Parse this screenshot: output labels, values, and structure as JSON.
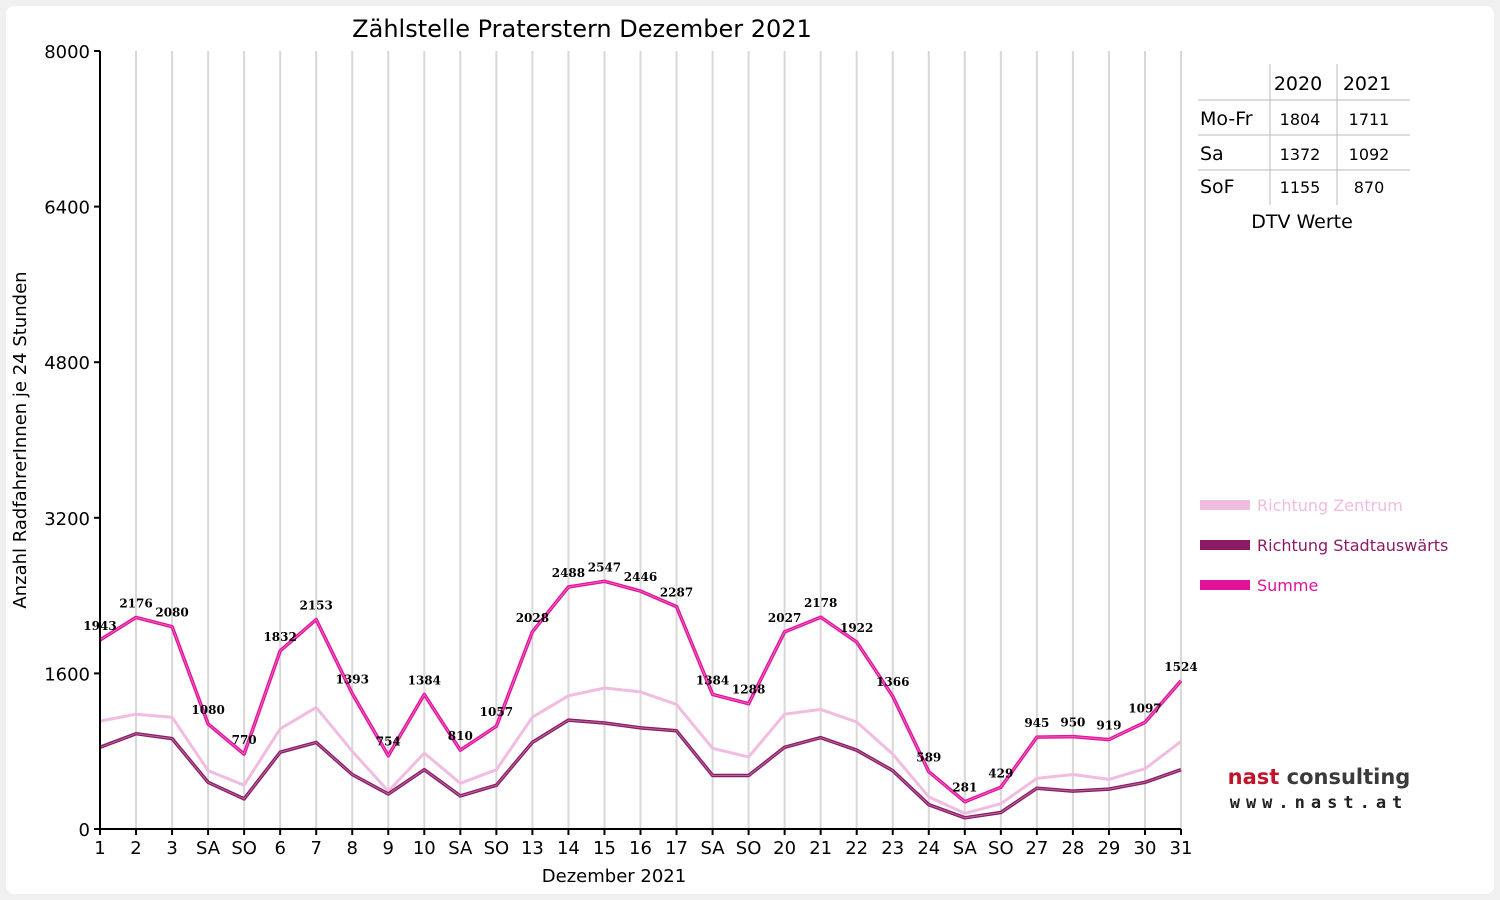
{
  "chart_data": {
    "type": "line",
    "title": "Zählstelle Praterstern Dezember 2021",
    "xlabel": "Dezember 2021",
    "ylabel": "Anzahl RadfahrerInnen je 24 Stunden",
    "ylim": [
      0,
      8000
    ],
    "yticks": [
      0,
      1600,
      3200,
      4800,
      6400,
      8000
    ],
    "grid": "vertical",
    "categories": [
      "1",
      "2",
      "3",
      "SA",
      "SO",
      "6",
      "7",
      "8",
      "9",
      "10",
      "SA",
      "SO",
      "13",
      "14",
      "15",
      "16",
      "17",
      "SA",
      "SO",
      "20",
      "21",
      "22",
      "23",
      "24",
      "SA",
      "SO",
      "27",
      "28",
      "29",
      "30",
      "31"
    ],
    "holiday_categories": [
      4,
      7,
      11,
      18,
      25
    ],
    "series": [
      {
        "name": "Richtung Zentrum",
        "color": "#f0bde0",
        "values": [
          1110,
          1180,
          1150,
          600,
          450,
          1030,
          1250,
          800,
          390,
          780,
          470,
          610,
          1150,
          1370,
          1450,
          1410,
          1280,
          830,
          740,
          1180,
          1230,
          1100,
          770,
          330,
          160,
          260,
          520,
          560,
          510,
          620,
          900
        ]
      },
      {
        "name": "Richtung Stadtauswärts",
        "color": "#8c1b66",
        "values": [
          840,
          980,
          930,
          480,
          310,
          790,
          890,
          560,
          360,
          610,
          340,
          450,
          890,
          1120,
          1090,
          1040,
          1010,
          550,
          550,
          840,
          940,
          810,
          600,
          250,
          115,
          170,
          420,
          390,
          410,
          480,
          610
        ]
      },
      {
        "name": "Summe",
        "color": "#e0129a",
        "values": [
          1943,
          2176,
          2080,
          1080,
          770,
          1832,
          2153,
          1393,
          754,
          1384,
          810,
          1057,
          2028,
          2488,
          2547,
          2446,
          2287,
          1384,
          1288,
          2027,
          2178,
          1922,
          1366,
          589,
          281,
          429,
          945,
          950,
          919,
          1097,
          1524
        ]
      }
    ],
    "data_labels": [
      "1943",
      "2176",
      "2080",
      "1080",
      "770",
      "1832",
      "2153",
      "1393",
      "754",
      "1384",
      "810",
      "1057",
      "2028",
      "2488",
      "2547",
      "2446",
      "2287",
      "1384",
      "1288",
      "2027",
      "2178",
      "1922",
      "1366",
      "589",
      "281",
      "429",
      "945",
      "950",
      "919",
      "1097",
      "1524"
    ],
    "legend_position": "right"
  },
  "dtv_table": {
    "columns": [
      "2020",
      "2021"
    ],
    "rows": [
      {
        "label": "Mo-Fr",
        "v2020": "1804",
        "v2021": "1711"
      },
      {
        "label": "Sa",
        "v2020": "1372",
        "v2021": "1092"
      },
      {
        "label": "SoF",
        "v2020": "1155",
        "v2021": "870"
      }
    ],
    "caption": "DTV Werte"
  },
  "logo": {
    "brand": "nast consulting",
    "brand_part1": "nast",
    "brand_part2": "consulting",
    "url": "www.nast.at",
    "colors": {
      "part1": "#c0142a",
      "part2": "#3a3a3a"
    }
  },
  "colors": {
    "holiday": "#ff0000",
    "grid": "#d8d8d8"
  }
}
